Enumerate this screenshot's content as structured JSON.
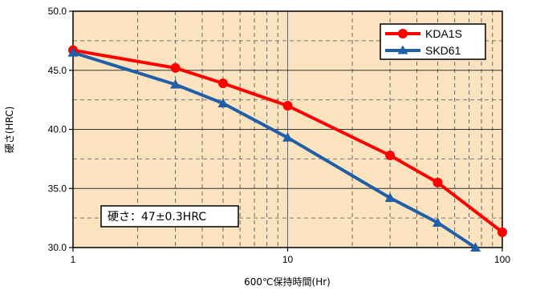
{
  "chart_data": {
    "type": "line",
    "xlabel": "600℃保持時間(Hr)",
    "ylabel": "硬さ(HRC)",
    "x_scale": "log",
    "xlim": [
      1,
      100
    ],
    "ylim": [
      30,
      50
    ],
    "x_ticks": [
      "1",
      "10",
      "100"
    ],
    "y_ticks": [
      "30.0",
      "35.0",
      "40.0",
      "45.0",
      "50.0"
    ],
    "grid": true,
    "legend_position": "top-right",
    "annotation": "硬さ：47±0.3HRC",
    "plot_background": "#fce3c0",
    "series": [
      {
        "name": "KDA1S",
        "color": "#ff0000",
        "marker": "circle",
        "x": [
          1,
          3,
          5,
          10,
          30,
          50,
          100
        ],
        "y": [
          46.7,
          45.2,
          43.9,
          42.0,
          37.8,
          35.5,
          31.3
        ]
      },
      {
        "name": "SKD61",
        "color": "#1f5fa8",
        "marker": "triangle",
        "x": [
          1,
          3,
          5,
          10,
          30,
          50,
          75
        ],
        "y": [
          46.5,
          43.8,
          42.2,
          39.3,
          34.2,
          32.1,
          30.0
        ]
      }
    ]
  }
}
